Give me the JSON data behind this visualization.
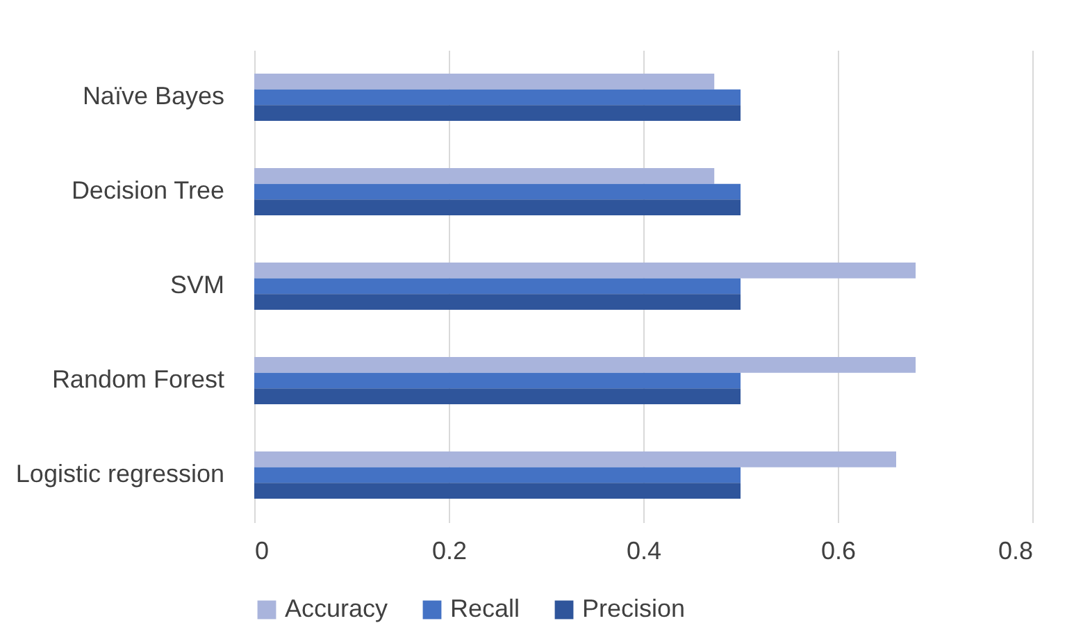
{
  "chart_data": {
    "type": "bar",
    "orientation": "horizontal",
    "categories": [
      "Naïve Bayes",
      "Decision Tree",
      "SVM",
      "Random Forest",
      "Logistic regression"
    ],
    "series": [
      {
        "name": "Accuracy",
        "color": "#a9b4dc",
        "values": [
          0.473,
          0.473,
          0.68,
          0.68,
          0.66
        ]
      },
      {
        "name": "Recall",
        "color": "#4472c4",
        "values": [
          0.5,
          0.5,
          0.5,
          0.5,
          0.5
        ]
      },
      {
        "name": "Precision",
        "color": "#2f559b",
        "values": [
          0.5,
          0.5,
          0.5,
          0.5,
          0.5
        ]
      }
    ],
    "xlim": [
      0,
      0.8
    ],
    "xticks": [
      0,
      0.2,
      0.4,
      0.6,
      0.8
    ],
    "grid": "x",
    "legend": "bottom"
  }
}
